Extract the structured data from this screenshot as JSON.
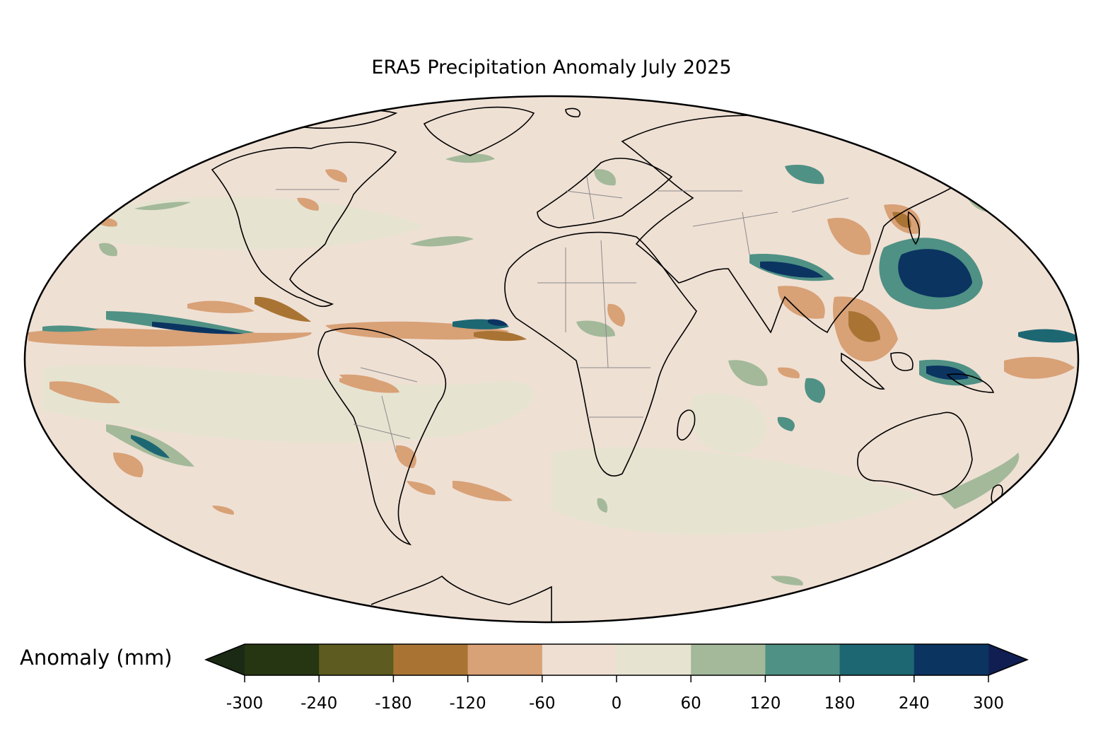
{
  "title": "ERA5 Precipitation Anomaly July 2025",
  "projection": "Mollweide",
  "colorbar": {
    "label": "Anomaly (mm)",
    "ticks": [
      "-300",
      "-240",
      "-180",
      "-120",
      "-60",
      "0",
      "60",
      "120",
      "180",
      "240",
      "300"
    ],
    "bins": [
      {
        "range": "< -300",
        "color": "#1a2a14"
      },
      {
        "range": "-300 to -240",
        "color": "#263612"
      },
      {
        "range": "-240 to -180",
        "color": "#5d5b1f"
      },
      {
        "range": "-180 to -120",
        "color": "#a97433"
      },
      {
        "range": "-120 to -60",
        "color": "#d8a176"
      },
      {
        "range": "-60 to 0",
        "color": "#efdfd3"
      },
      {
        "range": "0 to 60",
        "color": "#e7e3d1"
      },
      {
        "range": "60 to 120",
        "color": "#a3b99a"
      },
      {
        "range": "120 to 180",
        "color": "#4f9184"
      },
      {
        "range": "180 to 240",
        "color": "#1d6773"
      },
      {
        "range": "240 to 300",
        "color": "#0b3461"
      },
      {
        "range": "> 300",
        "color": "#101e52"
      }
    ]
  },
  "colors": {
    "background": "#efe0d4",
    "coastline": "#000000",
    "borders": "#8a8a8a"
  }
}
